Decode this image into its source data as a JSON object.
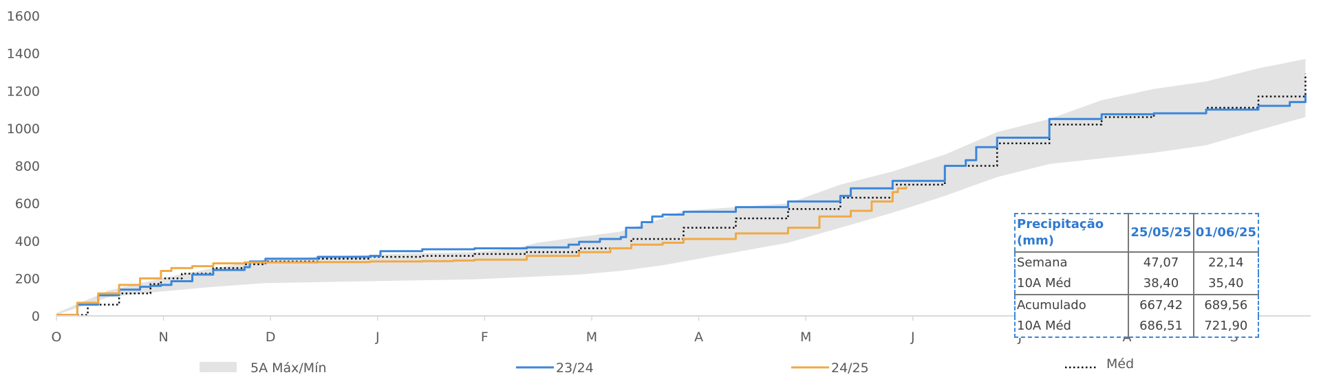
{
  "chart_data": {
    "type": "line",
    "x_categories": [
      "O",
      "N",
      "D",
      "J",
      "F",
      "M",
      "A",
      "M",
      "J",
      "J",
      "A",
      "S"
    ],
    "yticks": [
      0,
      200,
      400,
      600,
      800,
      1000,
      1200,
      1400,
      1600
    ],
    "ylim": [
      0,
      1600
    ],
    "x_unit": "month index from 1 October (0 = O, 12 = end of S)",
    "band": {
      "name": "5A Máx/Mín",
      "color": "#e3e3e3",
      "x": [
        0,
        0.5,
        1,
        1.5,
        2,
        2.5,
        3,
        3.5,
        4,
        4.4,
        4.6,
        5,
        5.4,
        5.8,
        6,
        6.5,
        7,
        7.5,
        8,
        8.5,
        9,
        9.5,
        10,
        10.5,
        11,
        11.5,
        11.95
      ],
      "upper": [
        15,
        135,
        200,
        255,
        300,
        315,
        325,
        335,
        340,
        360,
        390,
        420,
        450,
        520,
        560,
        580,
        600,
        700,
        770,
        860,
        980,
        1050,
        1150,
        1210,
        1250,
        1320,
        1370
      ],
      "lower": [
        5,
        100,
        130,
        155,
        175,
        180,
        185,
        190,
        195,
        205,
        210,
        220,
        240,
        270,
        290,
        340,
        390,
        470,
        550,
        640,
        740,
        810,
        840,
        870,
        910,
        990,
        1060
      ]
    },
    "series": [
      {
        "name": "23/24",
        "color": "#3b86da",
        "x": [
          0,
          0.2,
          0.4,
          0.6,
          0.8,
          0.9,
          1.0,
          1.1,
          1.3,
          1.5,
          1.8,
          1.85,
          2.0,
          2.5,
          3.0,
          3.1,
          3.5,
          4.0,
          4.5,
          4.9,
          5.0,
          5.2,
          5.4,
          5.45,
          5.6,
          5.7,
          5.8,
          6.0,
          6.5,
          7.0,
          7.5,
          7.6,
          8.0,
          8.5,
          8.7,
          8.8,
          9.0,
          9.5,
          10.0,
          10.5,
          11.0,
          11.5,
          11.8,
          11.95
        ],
        "y": [
          5,
          60,
          110,
          140,
          155,
          160,
          165,
          185,
          220,
          245,
          260,
          290,
          305,
          315,
          320,
          345,
          355,
          360,
          365,
          380,
          395,
          410,
          420,
          470,
          500,
          530,
          540,
          555,
          580,
          610,
          640,
          680,
          720,
          800,
          830,
          900,
          950,
          1050,
          1075,
          1080,
          1100,
          1120,
          1140,
          1180
        ]
      },
      {
        "name": "24/25",
        "color": "#f0a946",
        "x": [
          0,
          0.2,
          0.4,
          0.6,
          0.8,
          1.0,
          1.1,
          1.3,
          1.5,
          1.8,
          2.0,
          2.5,
          3.0,
          3.5,
          3.8,
          4.0,
          4.5,
          5.0,
          5.3,
          5.5,
          5.8,
          6.0,
          6.5,
          7.0,
          7.3,
          7.6,
          7.8,
          8.0,
          8.05,
          8.13
        ],
        "y": [
          5,
          70,
          120,
          165,
          200,
          240,
          255,
          265,
          280,
          285,
          285,
          287,
          290,
          292,
          295,
          300,
          320,
          340,
          360,
          380,
          390,
          410,
          440,
          470,
          530,
          560,
          610,
          660,
          680,
          690
        ]
      },
      {
        "name": "Méd",
        "color": "#111111",
        "dashed": true,
        "x": [
          0,
          0.3,
          0.6,
          0.9,
          1.0,
          1.2,
          1.5,
          1.8,
          2.0,
          2.5,
          3.0,
          3.5,
          4.0,
          4.5,
          5.0,
          5.5,
          6.0,
          6.5,
          7.0,
          7.5,
          8.0,
          8.5,
          9.0,
          9.5,
          10.0,
          10.5,
          11.0,
          11.5,
          11.95
        ],
        "y": [
          5,
          60,
          120,
          170,
          200,
          225,
          255,
          275,
          290,
          305,
          315,
          320,
          330,
          340,
          360,
          410,
          470,
          520,
          570,
          630,
          700,
          800,
          920,
          1020,
          1060,
          1080,
          1110,
          1170,
          1290
        ]
      }
    ],
    "legend": {
      "placement": "bottom",
      "entries": [
        "5A Máx/Mín",
        "23/24",
        "24/25",
        "Méd"
      ]
    }
  },
  "table": {
    "headers": [
      "Precipitação (mm)",
      "25/05/25",
      "01/06/25"
    ],
    "rows": [
      [
        "Semana",
        "47,07",
        "22,14"
      ],
      [
        "10A Méd",
        "38,40",
        "35,40"
      ],
      [
        "Acumulado",
        "667,42",
        "689,56"
      ],
      [
        "10A Méd",
        "686,51",
        "721,90"
      ]
    ]
  },
  "colors": {
    "table_border": "#3a86d8",
    "header_text": "#2f7ad0",
    "axis": "#d9d9d9"
  }
}
